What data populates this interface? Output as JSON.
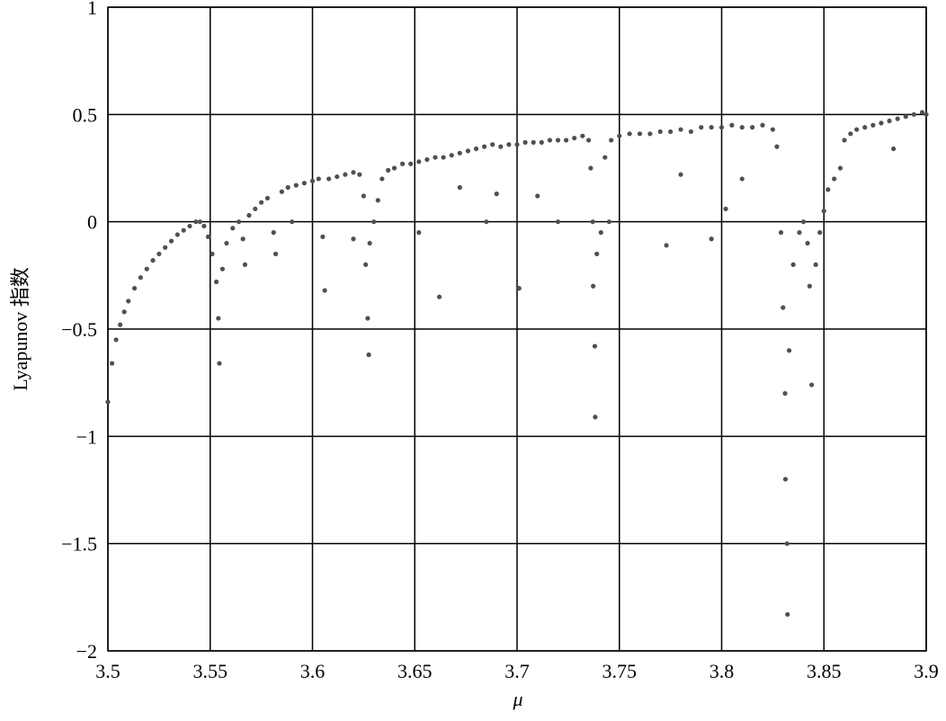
{
  "chart_data": {
    "type": "scatter",
    "x_label": "μ",
    "y_label": "Lyapunov 指数",
    "xlim": [
      3.5,
      3.9
    ],
    "ylim": [
      -2,
      1
    ],
    "xticks": [
      3.5,
      3.55,
      3.6,
      3.65,
      3.7,
      3.75,
      3.8,
      3.85,
      3.9
    ],
    "yticks": [
      {
        "value": -2,
        "label": "−2"
      },
      {
        "value": -1.5,
        "label": "−1.5"
      },
      {
        "value": -1,
        "label": "−1"
      },
      {
        "value": -0.5,
        "label": "−0.5"
      },
      0,
      0.5,
      1
    ],
    "grid": true,
    "x": [
      3.5,
      3.502,
      3.504,
      3.506,
      3.508,
      3.51,
      3.513,
      3.516,
      3.519,
      3.522,
      3.525,
      3.528,
      3.531,
      3.534,
      3.537,
      3.54,
      3.543,
      3.545,
      3.547,
      3.549,
      3.551,
      3.553,
      3.554,
      3.5545,
      3.556,
      3.558,
      3.561,
      3.564,
      3.566,
      3.567,
      3.569,
      3.572,
      3.575,
      3.578,
      3.581,
      3.582,
      3.585,
      3.588,
      3.592,
      3.596,
      3.6,
      3.603,
      3.605,
      3.606,
      3.608,
      3.612,
      3.616,
      3.62,
      3.623,
      3.625,
      3.626,
      3.627,
      3.6275,
      3.628,
      3.63,
      3.632,
      3.634,
      3.637,
      3.64,
      3.644,
      3.648,
      3.652,
      3.656,
      3.66,
      3.662,
      3.664,
      3.668,
      3.672,
      3.676,
      3.68,
      3.684,
      3.688,
      3.692,
      3.696,
      3.7,
      3.701,
      3.704,
      3.708,
      3.712,
      3.716,
      3.72,
      3.724,
      3.728,
      3.732,
      3.735,
      3.736,
      3.737,
      3.7372,
      3.738,
      3.7382,
      3.739,
      3.741,
      3.743,
      3.746,
      3.75,
      3.755,
      3.76,
      3.765,
      3.77,
      3.773,
      3.775,
      3.78,
      3.785,
      3.79,
      3.795,
      3.8,
      3.802,
      3.805,
      3.81,
      3.815,
      3.82,
      3.825,
      3.827,
      3.829,
      3.83,
      3.831,
      3.8312,
      3.832,
      3.8322,
      3.833,
      3.835,
      3.838,
      3.84,
      3.842,
      3.843,
      3.844,
      3.846,
      3.848,
      3.85,
      3.852,
      3.855,
      3.858,
      3.86,
      3.863,
      3.866,
      3.87,
      3.874,
      3.878,
      3.882,
      3.884,
      3.886,
      3.89,
      3.894,
      3.898,
      3.9,
      3.59,
      3.62,
      3.652,
      3.672,
      3.685,
      3.69,
      3.71,
      3.72,
      3.745,
      3.78,
      3.795,
      3.81
    ],
    "series": [
      {
        "color": "#505050",
        "values": [
          -0.84,
          -0.66,
          -0.55,
          -0.48,
          -0.42,
          -0.37,
          -0.31,
          -0.26,
          -0.22,
          -0.18,
          -0.15,
          -0.12,
          -0.09,
          -0.06,
          -0.04,
          -0.02,
          0,
          0,
          -0.02,
          -0.07,
          -0.15,
          -0.28,
          -0.45,
          -0.66,
          -0.22,
          -0.1,
          -0.03,
          0,
          -0.08,
          -0.2,
          0.03,
          0.06,
          0.09,
          0.11,
          -0.05,
          -0.15,
          0.14,
          0.16,
          0.17,
          0.18,
          0.19,
          0.2,
          -0.07,
          -0.32,
          0.2,
          0.21,
          0.22,
          0.23,
          0.22,
          0.12,
          -0.2,
          -0.45,
          -0.62,
          -0.1,
          0,
          0.1,
          0.2,
          0.24,
          0.25,
          0.27,
          0.27,
          0.28,
          0.29,
          0.3,
          -0.35,
          0.3,
          0.31,
          0.32,
          0.33,
          0.34,
          0.35,
          0.36,
          0.35,
          0.36,
          0.36,
          -0.31,
          0.37,
          0.37,
          0.37,
          0.38,
          0.38,
          0.38,
          0.39,
          0.4,
          0.38,
          0.25,
          0,
          -0.3,
          -0.58,
          -0.91,
          -0.15,
          -0.05,
          0.3,
          0.38,
          0.4,
          0.41,
          0.41,
          0.41,
          0.42,
          -0.11,
          0.42,
          0.43,
          0.42,
          0.44,
          0.44,
          0.44,
          0.06,
          0.45,
          0.44,
          0.44,
          0.45,
          0.43,
          0.35,
          -0.05,
          -0.4,
          -0.8,
          -1.2,
          -1.5,
          -1.83,
          -0.6,
          -0.2,
          -0.05,
          0,
          -0.1,
          -0.3,
          -0.76,
          -0.2,
          -0.05,
          0.05,
          0.15,
          0.2,
          0.25,
          0.38,
          0.41,
          0.43,
          0.44,
          0.45,
          0.46,
          0.47,
          0.34,
          0.48,
          0.49,
          0.5,
          0.51,
          0.5,
          0,
          -0.08,
          -0.05,
          0.16,
          0,
          0.13,
          0.12,
          0,
          0,
          0.22,
          -0.08,
          0.2
        ]
      }
    ]
  }
}
